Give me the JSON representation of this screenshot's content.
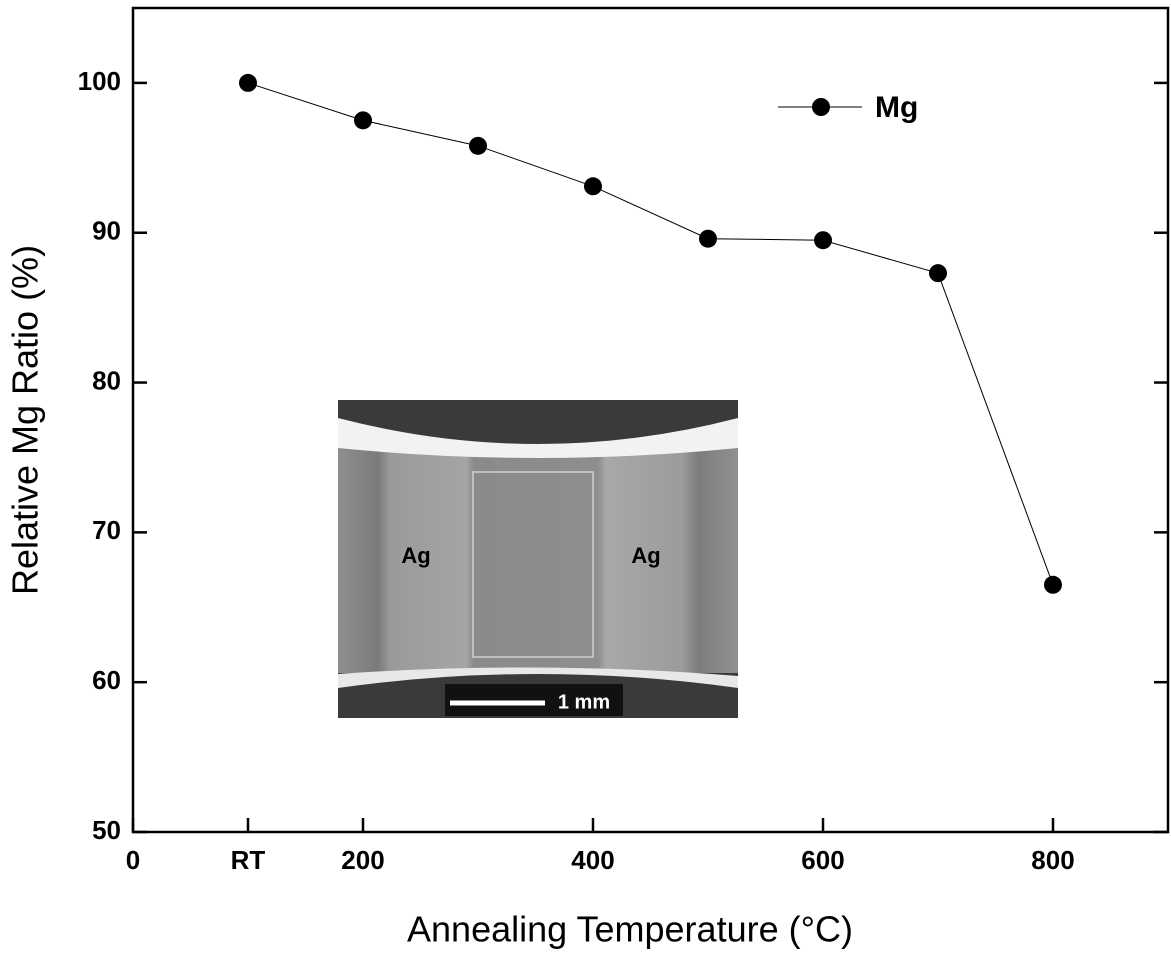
{
  "chart_data": {
    "type": "line",
    "x_label": "Annealing Temperature (°C)",
    "y_label": "Relative Mg Ratio (%)",
    "x": [
      100,
      200,
      300,
      400,
      500,
      600,
      700,
      800
    ],
    "series": [
      {
        "name": "Mg",
        "color": "#000000",
        "values": [
          100,
          97.5,
          95.8,
          93.1,
          89.6,
          89.5,
          87.3,
          66.5
        ]
      }
    ],
    "xlim": [
      0,
      900
    ],
    "xticks": [
      0,
      {
        "value": 100,
        "label": "RT"
      },
      200,
      400,
      600,
      800
    ],
    "ylim": [
      50,
      105
    ],
    "yticks": [
      50,
      60,
      70,
      80,
      90,
      100
    ],
    "legend": "upper right",
    "inset_labels": [
      "Ag",
      "Ag",
      "1 mm"
    ]
  }
}
